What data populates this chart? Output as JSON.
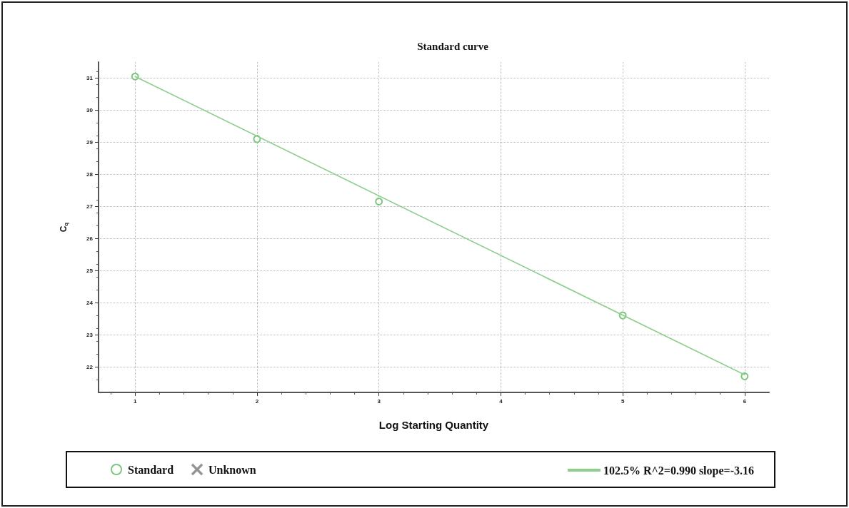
{
  "chart_data": {
    "type": "scatter",
    "title": "Standard curve",
    "xlabel": "Log Starting Quantity",
    "ylabel": "C$_{q}$",
    "xlim": [
      0.7,
      6.2
    ],
    "xticks": [
      1,
      2,
      3,
      4,
      5,
      6
    ],
    "ylim": [
      21.2,
      31.5
    ],
    "yticks": [
      22,
      23,
      24,
      25,
      26,
      27,
      28,
      29,
      30,
      31
    ],
    "grid": true,
    "legend": "bottom",
    "series": [
      {
        "name": "Standard",
        "marker": "circle",
        "color": "#5cb85c",
        "x": [
          1,
          2,
          3,
          5,
          6
        ],
        "values": [
          31.05,
          29.1,
          27.15,
          23.6,
          21.7
        ]
      },
      {
        "name": "Unknown",
        "marker": "cross",
        "color": "#888888"
      },
      {
        "name": "102.5% R^2=0.990 slope=-3.16",
        "type": "line",
        "marker": "none",
        "line_style": "solid",
        "color": "#8ccf8c",
        "x": [
          1,
          6
        ],
        "values": [
          31.05,
          21.75
        ]
      }
    ]
  }
}
